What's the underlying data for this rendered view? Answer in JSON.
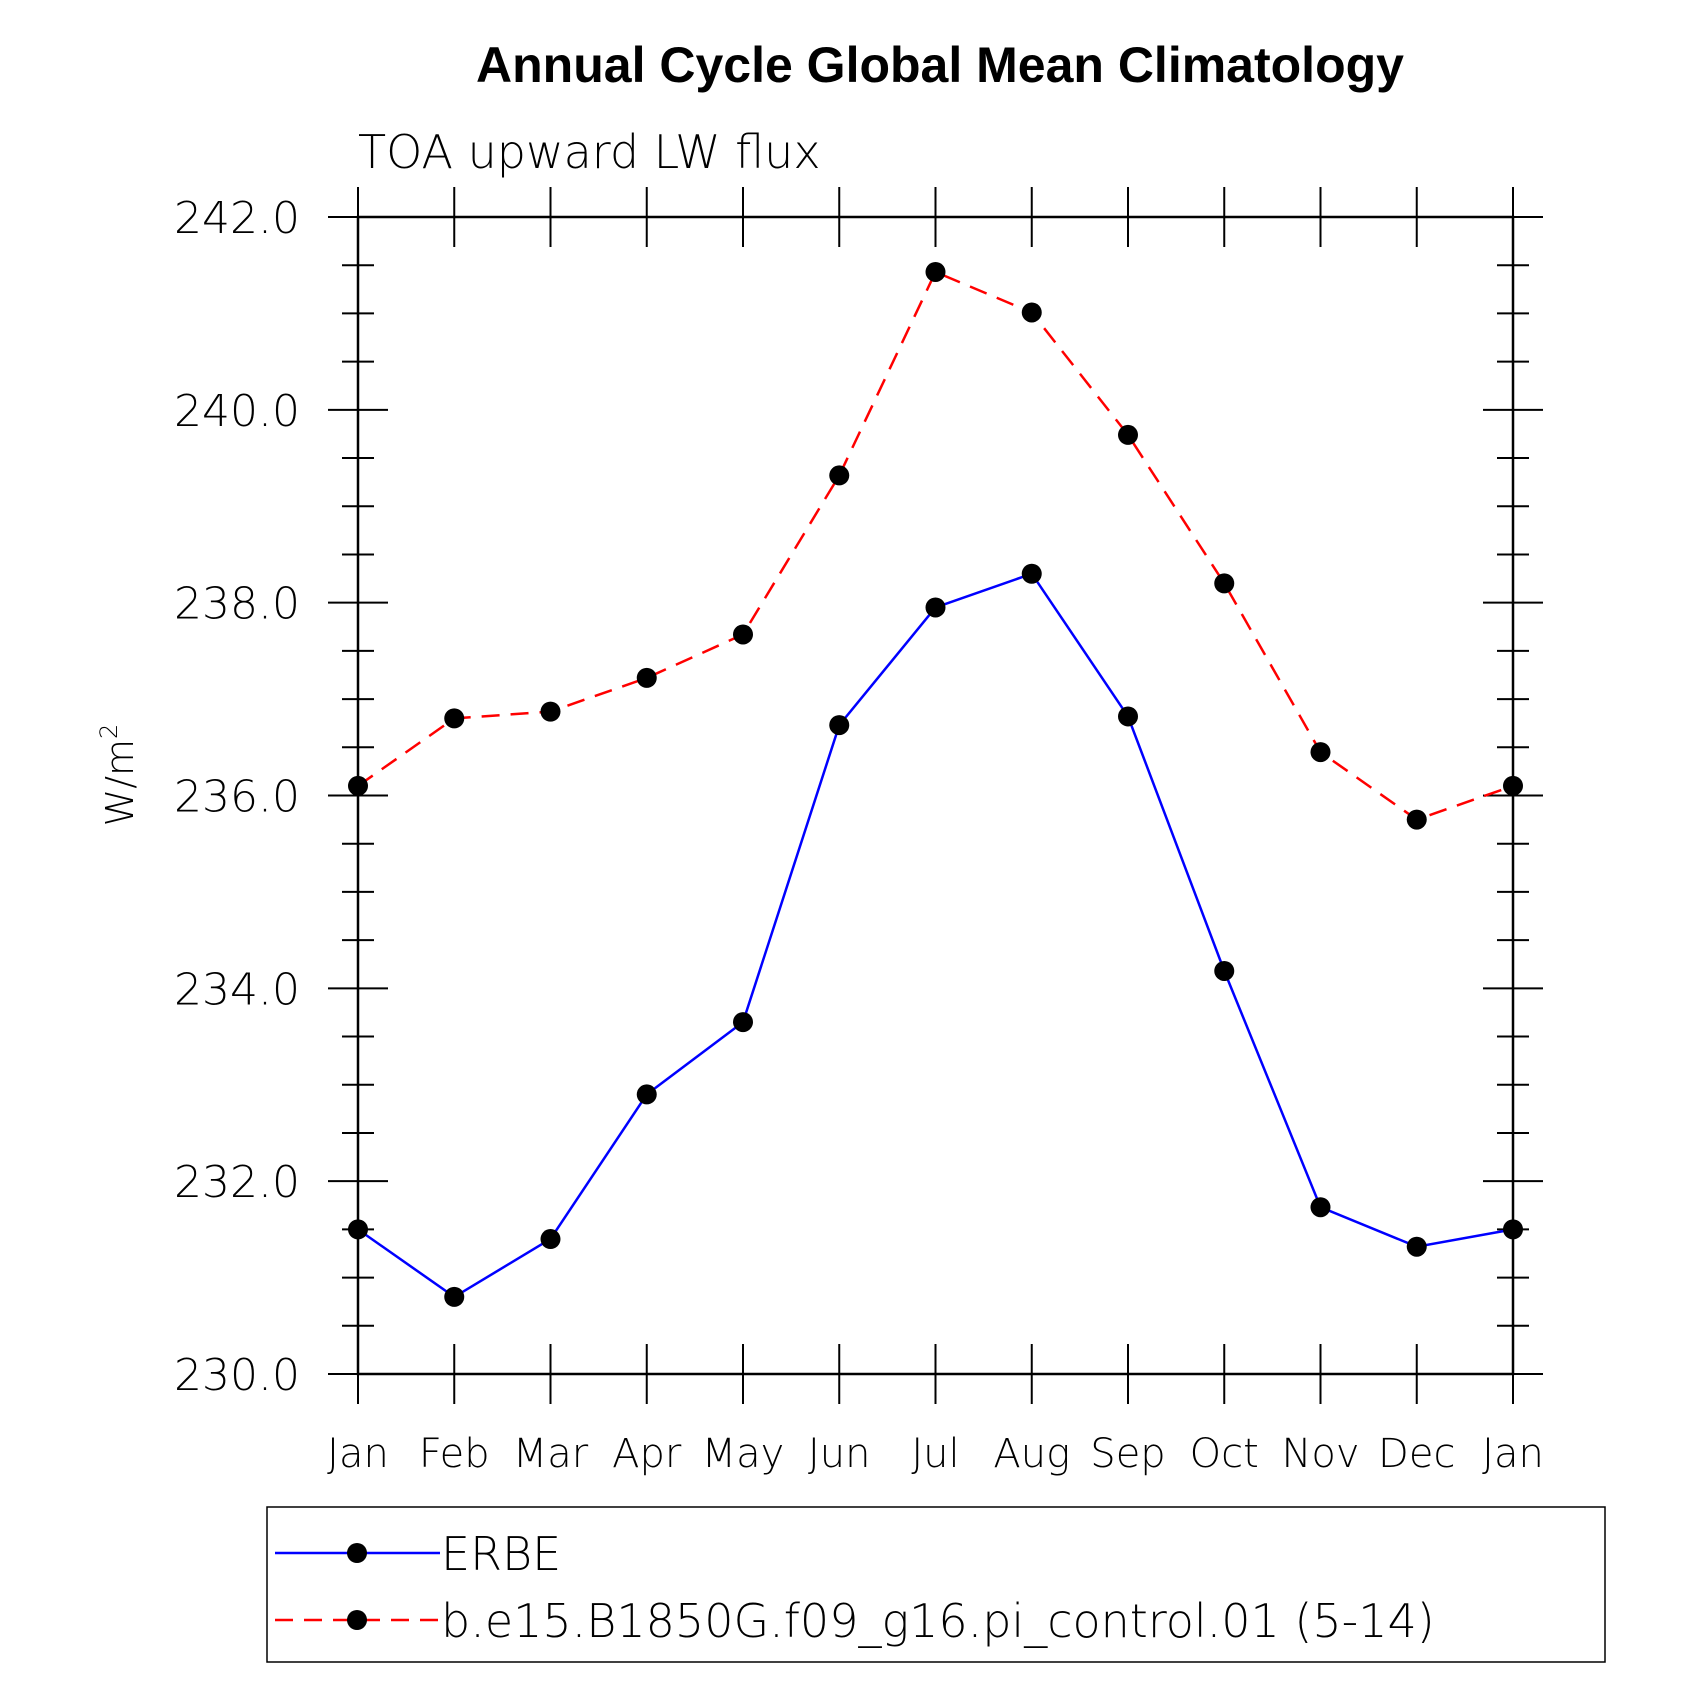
{
  "chart_data": {
    "type": "line",
    "title": "Annual Cycle Global Mean Climatology",
    "subtitle": "TOA upward LW flux",
    "xlabel": "",
    "ylabel": "W/m",
    "ylabel_superscript": "2",
    "categories": [
      "Jan",
      "Feb",
      "Mar",
      "Apr",
      "May",
      "Jun",
      "Jul",
      "Aug",
      "Sep",
      "Oct",
      "Nov",
      "Dec",
      "Jan"
    ],
    "ylim": [
      230.0,
      242.0
    ],
    "yticks": [
      "230.0",
      "232.0",
      "234.0",
      "236.0",
      "238.0",
      "240.0",
      "242.0"
    ],
    "grid": false,
    "legend_position": "bottom",
    "series": [
      {
        "name": "ERBE",
        "color": "#0000ff",
        "dash": "solid",
        "marker": "filled-circle",
        "values": [
          231.5,
          230.8,
          231.4,
          232.9,
          233.65,
          236.73,
          237.95,
          238.3,
          236.82,
          234.18,
          231.73,
          231.32,
          231.5
        ]
      },
      {
        "name": "b.e15.B1850G.f09_g16.pi_control.01 (5-14)",
        "color": "#ff0000",
        "dash": "dashed",
        "marker": "filled-circle",
        "values": [
          236.1,
          236.8,
          236.87,
          237.22,
          237.67,
          239.32,
          241.43,
          241.01,
          239.74,
          238.2,
          236.45,
          235.75,
          236.1
        ]
      }
    ]
  }
}
